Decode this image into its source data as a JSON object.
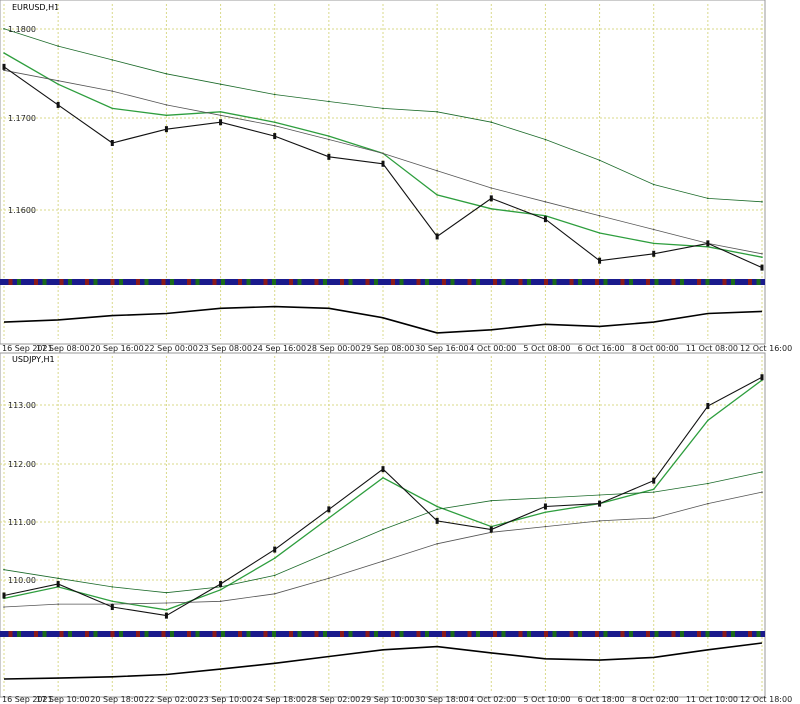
{
  "charts": [
    {
      "title": "EURUSD,H1",
      "price_labels": [
        "1.1800",
        "1.1700",
        "1.1600"
      ],
      "time_labels": [
        "16 Sep 2021",
        "17 Sep 08:00",
        "20 Sep 16:00",
        "22 Sep 00:00",
        "23 Sep 08:00",
        "24 Sep 16:00",
        "28 Sep 00:00",
        "29 Sep 08:00",
        "30 Sep 16:00",
        "4 Oct 00:00",
        "5 Oct 08:00",
        "6 Oct 16:00",
        "8 Oct 00:00",
        "11 Oct 08:00",
        "12 Oct 16:00"
      ]
    },
    {
      "title": "USDJPY,H1",
      "price_labels": [
        "113.00",
        "112.00",
        "111.00",
        "110.00"
      ],
      "time_labels": [
        "16 Sep 2021",
        "17 Sep 10:00",
        "20 Sep 18:00",
        "22 Sep 02:00",
        "23 Sep 10:00",
        "24 Sep 18:00",
        "28 Sep 02:00",
        "29 Sep 10:00",
        "30 Sep 18:00",
        "4 Oct 02:00",
        "5 Oct 10:00",
        "6 Oct 18:00",
        "8 Oct 02:00",
        "11 Oct 10:00",
        "12 Oct 18:00"
      ]
    }
  ],
  "colors": {
    "candle": "#111111",
    "ma_fast": "#2e9e3e",
    "ma_slow": "#1c6b2a",
    "ma_long": "#555555",
    "grid": "#d9d98a",
    "oscillator": "#000000",
    "strip": [
      "#1a1a8c",
      "#8c1a1a",
      "#1a6b1a"
    ]
  },
  "chart_data": [
    {
      "type": "line",
      "title": "EURUSD,H1",
      "x": [
        "16 Sep 2021",
        "17 Sep 08:00",
        "20 Sep 16:00",
        "22 Sep 00:00",
        "23 Sep 08:00",
        "24 Sep 16:00",
        "28 Sep 00:00",
        "29 Sep 08:00",
        "30 Sep 16:00",
        "4 Oct 00:00",
        "5 Oct 08:00",
        "6 Oct 16:00",
        "8 Oct 00:00",
        "11 Oct 08:00",
        "12 Oct 16:00"
      ],
      "ylim": [
        1.152,
        1.191
      ],
      "series": [
        {
          "values": [
            1.1825,
            1.177,
            1.1715,
            1.1735,
            1.1745,
            1.1725,
            1.1695,
            1.1685,
            1.158,
            1.1635,
            1.1605,
            1.1545,
            1.1555,
            1.157,
            1.1535
          ]
        },
        {
          "values": [
            1.1845,
            1.18,
            1.1765,
            1.1755,
            1.176,
            1.1745,
            1.1725,
            1.17,
            1.164,
            1.162,
            1.161,
            1.1585,
            1.157,
            1.1565,
            1.155
          ]
        },
        {
          "values": [
            1.188,
            1.1855,
            1.1835,
            1.1815,
            1.18,
            1.1785,
            1.1775,
            1.1765,
            1.176,
            1.1745,
            1.172,
            1.169,
            1.1655,
            1.1635,
            1.163
          ]
        },
        {
          "values": [
            1.182,
            1.1805,
            1.179,
            1.177,
            1.1755,
            1.174,
            1.172,
            1.17,
            1.1675,
            1.165,
            1.163,
            1.161,
            1.159,
            1.157,
            1.1555
          ]
        }
      ],
      "oscillator": [
        0.3,
        0.35,
        0.45,
        0.5,
        0.62,
        0.66,
        0.62,
        0.4,
        0.05,
        0.12,
        0.25,
        0.2,
        0.3,
        0.5,
        0.55
      ]
    },
    {
      "type": "line",
      "title": "USDJPY,H1",
      "x": [
        "16 Sep 2021",
        "17 Sep 10:00",
        "20 Sep 18:00",
        "22 Sep 02:00",
        "23 Sep 10:00",
        "24 Sep 18:00",
        "28 Sep 02:00",
        "29 Sep 10:00",
        "30 Sep 18:00",
        "4 Oct 02:00",
        "5 Oct 10:00",
        "6 Oct 18:00",
        "8 Oct 02:00",
        "11 Oct 10:00",
        "12 Oct 18:00"
      ],
      "ylim": [
        109.15,
        113.85
      ],
      "series": [
        {
          "values": [
            109.75,
            109.95,
            109.55,
            109.4,
            109.95,
            110.55,
            111.25,
            111.95,
            111.05,
            110.9,
            111.3,
            111.35,
            111.75,
            113.05,
            113.55
          ]
        },
        {
          "values": [
            109.7,
            109.9,
            109.65,
            109.5,
            109.85,
            110.4,
            111.1,
            111.8,
            111.3,
            110.95,
            111.2,
            111.35,
            111.6,
            112.8,
            113.5
          ]
        },
        {
          "values": [
            110.2,
            110.05,
            109.9,
            109.8,
            109.9,
            110.1,
            110.5,
            110.9,
            111.25,
            111.4,
            111.45,
            111.5,
            111.55,
            111.7,
            111.9
          ]
        },
        {
          "values": [
            109.55,
            109.6,
            109.6,
            109.62,
            109.65,
            109.78,
            110.05,
            110.35,
            110.65,
            110.85,
            110.95,
            111.05,
            111.1,
            111.35,
            111.55
          ]
        }
      ],
      "oscillator": [
        0.2,
        0.22,
        0.25,
        0.3,
        0.42,
        0.55,
        0.7,
        0.85,
        0.92,
        0.78,
        0.65,
        0.62,
        0.68,
        0.85,
        1.0
      ]
    }
  ]
}
